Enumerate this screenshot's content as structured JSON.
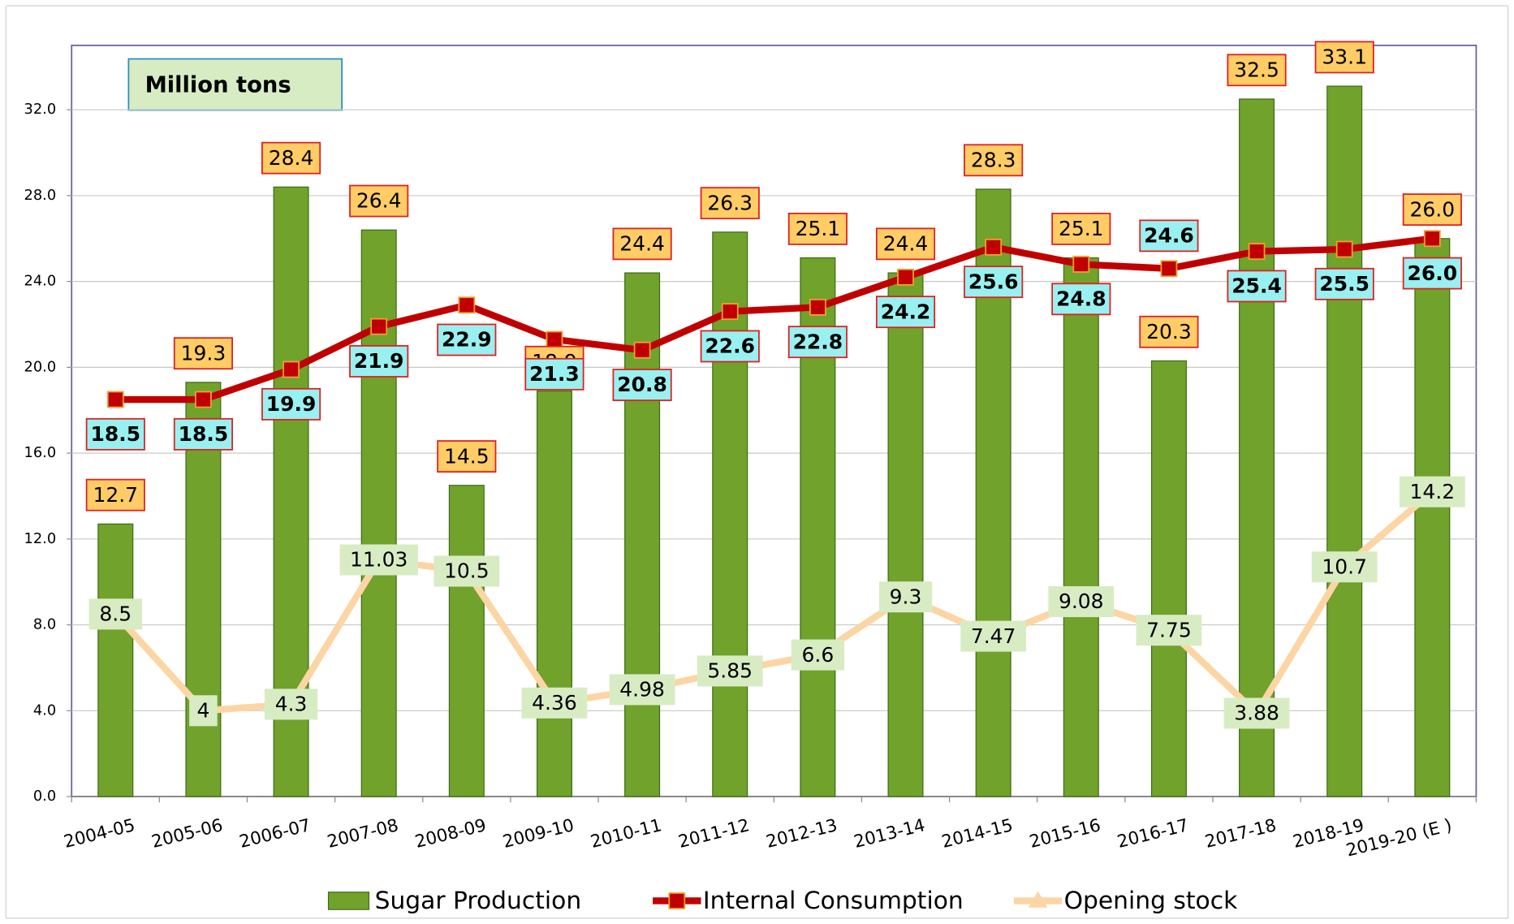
{
  "chart_data": {
    "type": "bar_line",
    "annotation": "Million tons",
    "categories": [
      "2004-05",
      "2005-06",
      "2006-07",
      "2007-08",
      "2008-09",
      "2009-10",
      "2010-11",
      "2011-12",
      "2012-13",
      "2013-14",
      "2014-15",
      "2015-16",
      "2016-17",
      "2017-18",
      "2018-19",
      "2019-20 (E )"
    ],
    "series": [
      {
        "name": "Sugar Production",
        "type": "bar",
        "color": "#70a22c",
        "values": [
          12.7,
          19.3,
          28.4,
          26.4,
          14.5,
          18.9,
          24.4,
          26.3,
          25.1,
          24.4,
          28.3,
          25.1,
          20.3,
          32.5,
          33.1,
          26.0
        ],
        "value_labels": [
          "12.7",
          "19.3",
          "28.4",
          "26.4",
          "14.5",
          "18.9",
          "24.4",
          "26.3",
          "25.1",
          "24.4",
          "28.3",
          "25.1",
          "20.3",
          "32.5",
          "33.1",
          "26.0"
        ]
      },
      {
        "name": "Internal Consumption",
        "type": "line",
        "color": "#c00000",
        "values": [
          18.5,
          18.5,
          19.9,
          21.9,
          22.9,
          21.3,
          20.8,
          22.6,
          22.8,
          24.2,
          25.6,
          24.8,
          24.6,
          25.4,
          25.5,
          26.0
        ],
        "value_labels": [
          "18.5",
          "18.5",
          "19.9",
          "21.9",
          "22.9",
          "21.3",
          "20.8",
          "22.6",
          "22.8",
          "24.2",
          "25.6",
          "24.8",
          "24.6",
          "25.4",
          "25.5",
          "26.0"
        ]
      },
      {
        "name": "Opening stock",
        "type": "line",
        "color": "#fcd5a5",
        "values": [
          8.5,
          4,
          4.3,
          11.03,
          10.5,
          4.36,
          4.98,
          5.85,
          6.6,
          9.3,
          7.47,
          9.08,
          7.75,
          3.88,
          10.7,
          14.2
        ]
      }
    ],
    "ylim": [
      0,
      35
    ],
    "yticks": [
      {
        "value": 0,
        "label": "0.0"
      },
      {
        "value": 4,
        "label": "4.0"
      },
      {
        "value": 8,
        "label": "8.0"
      },
      {
        "value": 12,
        "label": "12.0"
      },
      {
        "value": 16,
        "label": "16.0"
      },
      {
        "value": 20,
        "label": "20.0"
      },
      {
        "value": 24,
        "label": "24.0"
      },
      {
        "value": 28,
        "label": "28.0"
      },
      {
        "value": 32,
        "label": "32.0"
      }
    ],
    "grid": true,
    "legend": "bottom"
  }
}
